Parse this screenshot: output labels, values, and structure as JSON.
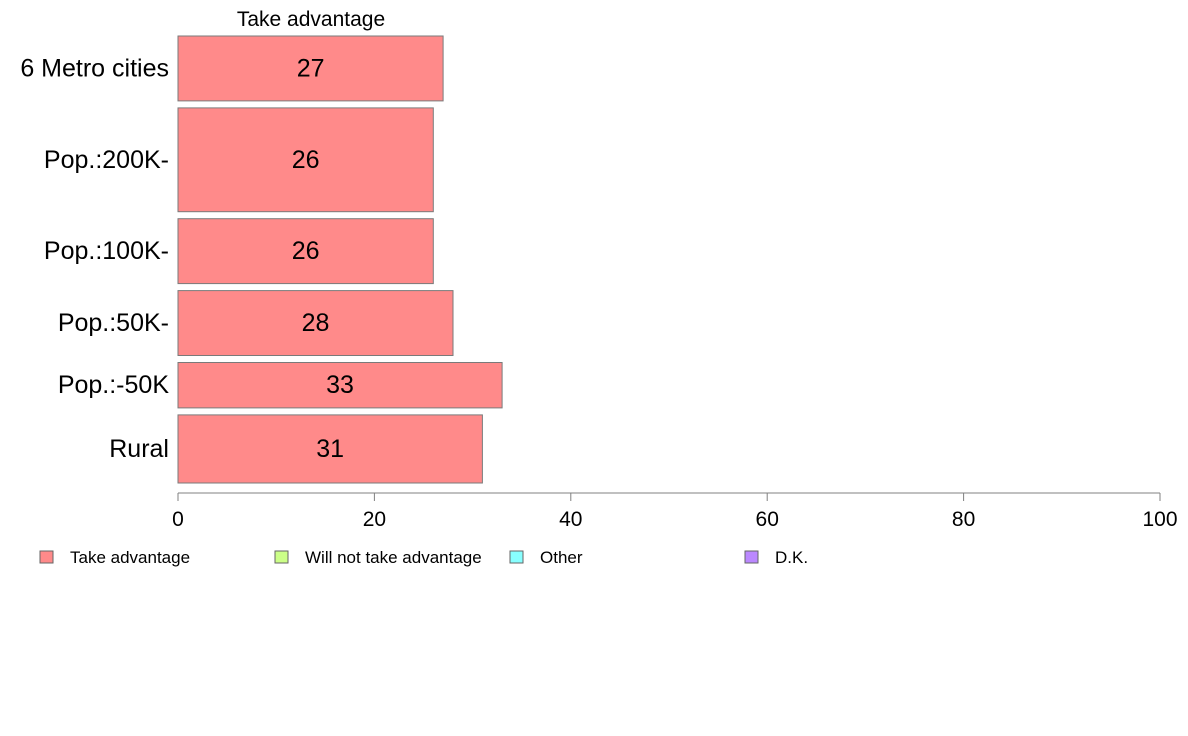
{
  "chart_data": {
    "type": "bar",
    "orientation": "horizontal",
    "title": "Take advantage",
    "categories": [
      "6 Metro cities",
      "Pop.:200K-",
      "Pop.:100K-",
      "Pop.:50K-",
      "Pop.:-50K",
      "Rural"
    ],
    "series": [
      {
        "name": "Take advantage",
        "color": "#ff8a8a",
        "values": [
          27,
          26,
          26,
          28,
          33,
          31
        ],
        "labels": [
          "27",
          "26",
          "26",
          "28",
          "33",
          "31"
        ]
      }
    ],
    "bar_weights": [
      1.0,
      1.6,
      1.0,
      1.0,
      0.7,
      1.05
    ],
    "xlim": [
      0,
      100
    ],
    "xticks": [
      0,
      20,
      40,
      60,
      80,
      100
    ],
    "xtick_labels": [
      "0",
      "20",
      "40",
      "60",
      "80",
      "100"
    ],
    "grid": false,
    "legend_position": "bottom",
    "legend": [
      {
        "label": "Take advantage",
        "color": "#ff8a8a"
      },
      {
        "label": "Will not take advantage",
        "color": "#ccff88"
      },
      {
        "label": "Other",
        "color": "#88ffff"
      },
      {
        "label": "D.K.",
        "color": "#bb88ff"
      }
    ]
  }
}
